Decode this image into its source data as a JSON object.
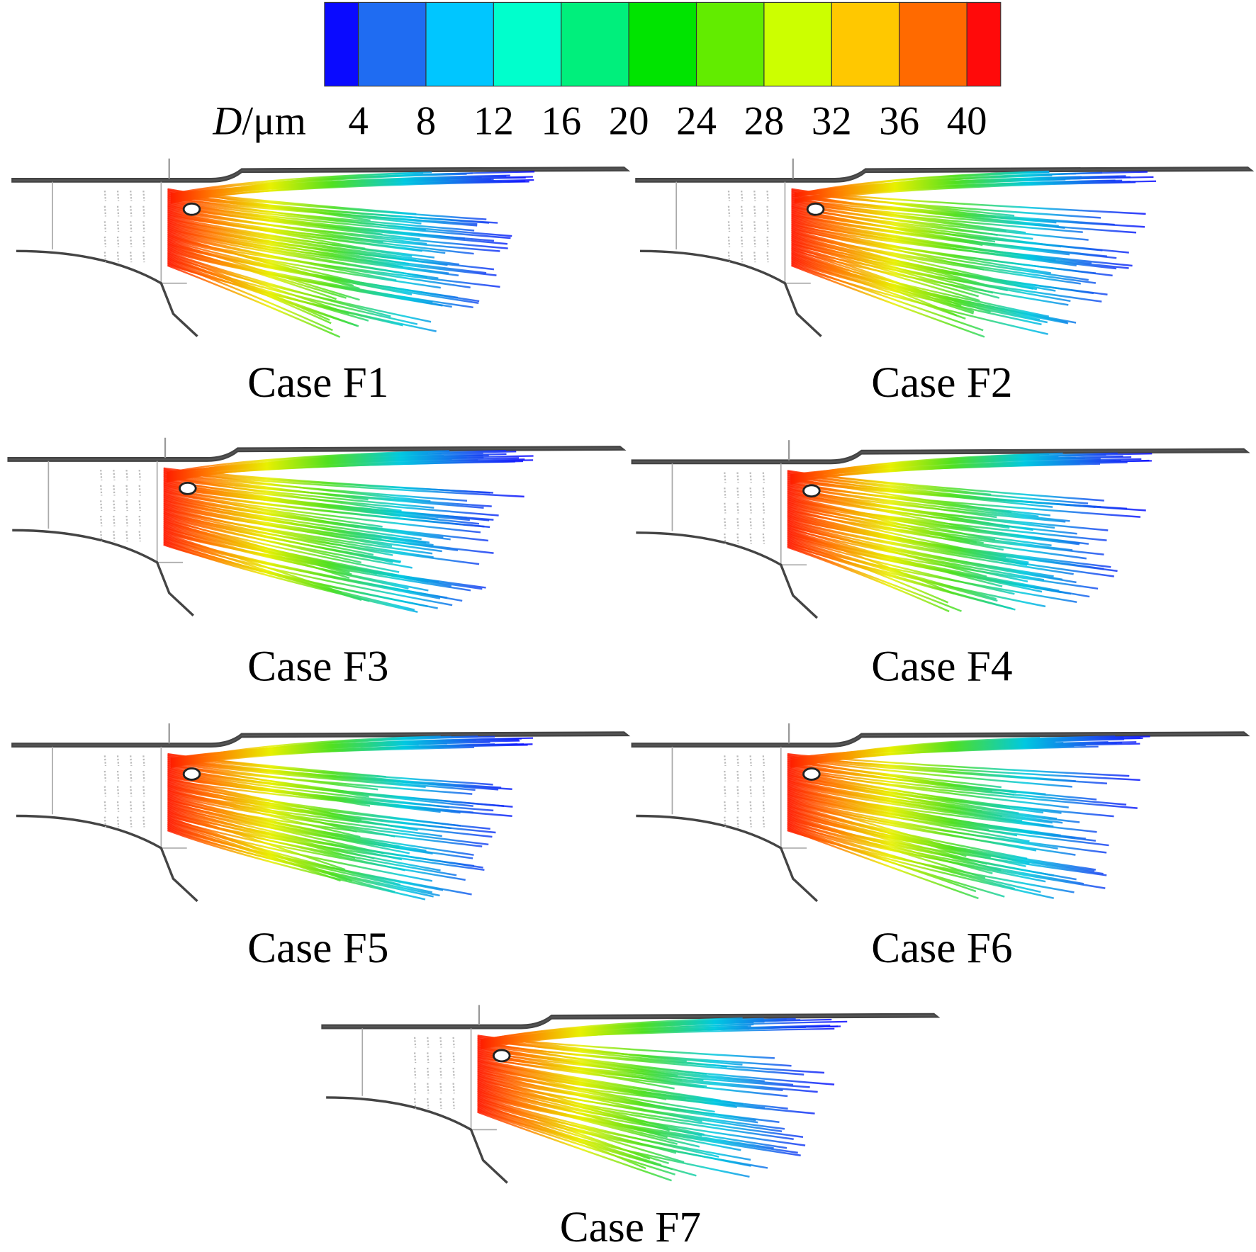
{
  "colorbar": {
    "variable": "D",
    "unit": "/μm",
    "ticks": [
      4,
      8,
      12,
      16,
      20,
      24,
      28,
      32,
      36,
      40
    ],
    "colors": [
      "#0a0aff",
      "#1f6cf2",
      "#00c6ff",
      "#00ffcc",
      "#00ef7c",
      "#00e400",
      "#62ec00",
      "#ccff00",
      "#ffc800",
      "#ff6a00",
      "#ff0a0a"
    ]
  },
  "panels": [
    {
      "label": "Case F1"
    },
    {
      "label": "Case F2"
    },
    {
      "label": "Case F3"
    },
    {
      "label": "Case F4"
    },
    {
      "label": "Case F5"
    },
    {
      "label": "Case F6"
    },
    {
      "label": "Case F7"
    }
  ]
}
